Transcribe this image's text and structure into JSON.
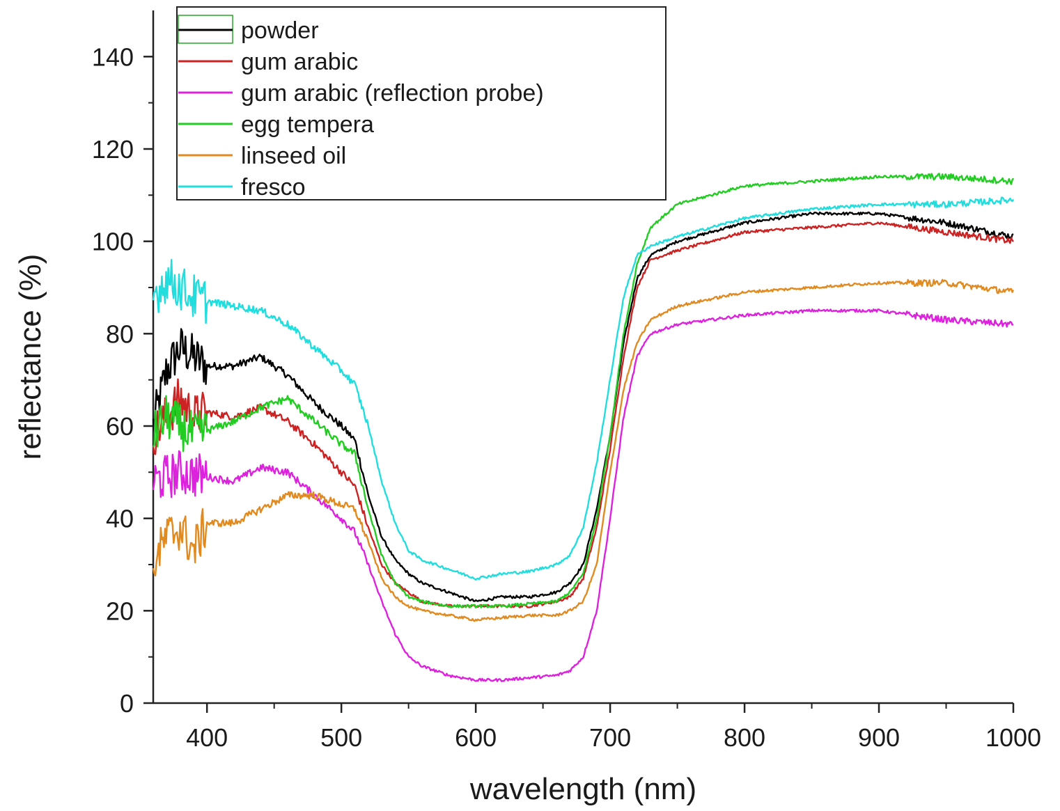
{
  "chart_data": {
    "type": "line",
    "xlabel": "wavelength (nm)",
    "ylabel": "reflectance (%)",
    "xlim": [
      360,
      1000
    ],
    "ylim": [
      0,
      150
    ],
    "x_ticks": [
      400,
      500,
      600,
      700,
      800,
      900,
      1000
    ],
    "y_ticks": [
      0,
      20,
      40,
      60,
      80,
      100,
      120,
      140
    ],
    "grid": false,
    "legend_position": "top-left",
    "series": [
      {
        "name": "powder",
        "color": "#000000",
        "points": [
          [
            360,
            60
          ],
          [
            370,
            72
          ],
          [
            380,
            77
          ],
          [
            390,
            75
          ],
          [
            400,
            73
          ],
          [
            420,
            73
          ],
          [
            440,
            75
          ],
          [
            460,
            71
          ],
          [
            480,
            65
          ],
          [
            500,
            60
          ],
          [
            510,
            57
          ],
          [
            520,
            45
          ],
          [
            530,
            36
          ],
          [
            540,
            31
          ],
          [
            550,
            28
          ],
          [
            560,
            26
          ],
          [
            580,
            24
          ],
          [
            600,
            22
          ],
          [
            620,
            23
          ],
          [
            640,
            23
          ],
          [
            660,
            24
          ],
          [
            670,
            26
          ],
          [
            680,
            30
          ],
          [
            690,
            42
          ],
          [
            700,
            58
          ],
          [
            710,
            78
          ],
          [
            720,
            92
          ],
          [
            730,
            97
          ],
          [
            750,
            100
          ],
          [
            800,
            104
          ],
          [
            850,
            106
          ],
          [
            900,
            106
          ],
          [
            950,
            104
          ],
          [
            1000,
            101
          ]
        ]
      },
      {
        "name": "gum arabic",
        "color": "#cc2222",
        "points": [
          [
            360,
            58
          ],
          [
            370,
            62
          ],
          [
            380,
            66
          ],
          [
            390,
            62
          ],
          [
            400,
            63
          ],
          [
            420,
            62
          ],
          [
            440,
            64
          ],
          [
            460,
            61
          ],
          [
            480,
            56
          ],
          [
            500,
            50
          ],
          [
            510,
            47
          ],
          [
            520,
            38
          ],
          [
            530,
            30
          ],
          [
            540,
            26
          ],
          [
            550,
            24
          ],
          [
            560,
            22
          ],
          [
            580,
            21
          ],
          [
            600,
            21
          ],
          [
            620,
            21
          ],
          [
            640,
            21
          ],
          [
            660,
            22
          ],
          [
            670,
            23
          ],
          [
            680,
            27
          ],
          [
            690,
            38
          ],
          [
            700,
            55
          ],
          [
            710,
            75
          ],
          [
            720,
            90
          ],
          [
            730,
            96
          ],
          [
            750,
            98
          ],
          [
            800,
            102
          ],
          [
            850,
            103
          ],
          [
            900,
            104
          ],
          [
            950,
            102
          ],
          [
            1000,
            100
          ]
        ]
      },
      {
        "name": "gum arabic (reflection probe)",
        "color": "#dd22dd",
        "points": [
          [
            360,
            48
          ],
          [
            370,
            49
          ],
          [
            380,
            50
          ],
          [
            400,
            49
          ],
          [
            420,
            48
          ],
          [
            440,
            51
          ],
          [
            460,
            50
          ],
          [
            480,
            45
          ],
          [
            500,
            40
          ],
          [
            510,
            37
          ],
          [
            520,
            30
          ],
          [
            530,
            22
          ],
          [
            540,
            15
          ],
          [
            550,
            10
          ],
          [
            560,
            8
          ],
          [
            580,
            6
          ],
          [
            600,
            5
          ],
          [
            620,
            5
          ],
          [
            640,
            5.5
          ],
          [
            660,
            6
          ],
          [
            670,
            7
          ],
          [
            680,
            10
          ],
          [
            690,
            20
          ],
          [
            700,
            40
          ],
          [
            710,
            62
          ],
          [
            720,
            75
          ],
          [
            730,
            80
          ],
          [
            750,
            82
          ],
          [
            800,
            84
          ],
          [
            850,
            85
          ],
          [
            900,
            85
          ],
          [
            950,
            83
          ],
          [
            1000,
            82
          ]
        ]
      },
      {
        "name": "egg tempera",
        "color": "#22cc22",
        "points": [
          [
            360,
            58
          ],
          [
            370,
            62
          ],
          [
            380,
            60
          ],
          [
            390,
            58
          ],
          [
            400,
            59
          ],
          [
            420,
            61
          ],
          [
            440,
            64
          ],
          [
            460,
            66
          ],
          [
            480,
            61
          ],
          [
            500,
            56
          ],
          [
            510,
            54
          ],
          [
            520,
            42
          ],
          [
            530,
            32
          ],
          [
            540,
            26
          ],
          [
            550,
            23
          ],
          [
            560,
            22
          ],
          [
            580,
            21
          ],
          [
            600,
            21
          ],
          [
            620,
            21
          ],
          [
            640,
            21.5
          ],
          [
            660,
            22
          ],
          [
            670,
            24
          ],
          [
            680,
            28
          ],
          [
            690,
            40
          ],
          [
            700,
            58
          ],
          [
            710,
            80
          ],
          [
            720,
            95
          ],
          [
            730,
            103
          ],
          [
            750,
            108
          ],
          [
            800,
            112
          ],
          [
            850,
            113
          ],
          [
            900,
            114
          ],
          [
            950,
            114
          ],
          [
            1000,
            113
          ]
        ]
      },
      {
        "name": "linseed oil",
        "color": "#e08a20",
        "points": [
          [
            360,
            30
          ],
          [
            370,
            36
          ],
          [
            380,
            38
          ],
          [
            390,
            33
          ],
          [
            400,
            39
          ],
          [
            420,
            39
          ],
          [
            440,
            42
          ],
          [
            460,
            45
          ],
          [
            480,
            45
          ],
          [
            500,
            43
          ],
          [
            510,
            42
          ],
          [
            520,
            35
          ],
          [
            530,
            27
          ],
          [
            540,
            23
          ],
          [
            550,
            21
          ],
          [
            560,
            20
          ],
          [
            580,
            19
          ],
          [
            600,
            18
          ],
          [
            620,
            18.5
          ],
          [
            640,
            19
          ],
          [
            660,
            19
          ],
          [
            670,
            20
          ],
          [
            680,
            22
          ],
          [
            690,
            30
          ],
          [
            700,
            50
          ],
          [
            710,
            68
          ],
          [
            720,
            78
          ],
          [
            730,
            83
          ],
          [
            750,
            86
          ],
          [
            800,
            89
          ],
          [
            850,
            90
          ],
          [
            900,
            91
          ],
          [
            950,
            91
          ],
          [
            1000,
            89
          ]
        ]
      },
      {
        "name": "fresco",
        "color": "#22dddd",
        "points": [
          [
            360,
            88
          ],
          [
            370,
            92
          ],
          [
            380,
            90
          ],
          [
            390,
            88
          ],
          [
            400,
            87
          ],
          [
            420,
            86
          ],
          [
            440,
            85
          ],
          [
            460,
            82
          ],
          [
            480,
            77
          ],
          [
            500,
            72
          ],
          [
            510,
            69
          ],
          [
            520,
            60
          ],
          [
            530,
            48
          ],
          [
            540,
            39
          ],
          [
            550,
            33
          ],
          [
            560,
            31
          ],
          [
            580,
            29
          ],
          [
            600,
            27
          ],
          [
            620,
            28
          ],
          [
            640,
            28.5
          ],
          [
            660,
            30
          ],
          [
            670,
            32
          ],
          [
            680,
            38
          ],
          [
            690,
            52
          ],
          [
            700,
            70
          ],
          [
            710,
            88
          ],
          [
            720,
            97
          ],
          [
            730,
            99
          ],
          [
            750,
            101
          ],
          [
            800,
            105
          ],
          [
            850,
            107
          ],
          [
            900,
            108
          ],
          [
            950,
            108
          ],
          [
            1000,
            109
          ]
        ]
      }
    ]
  }
}
